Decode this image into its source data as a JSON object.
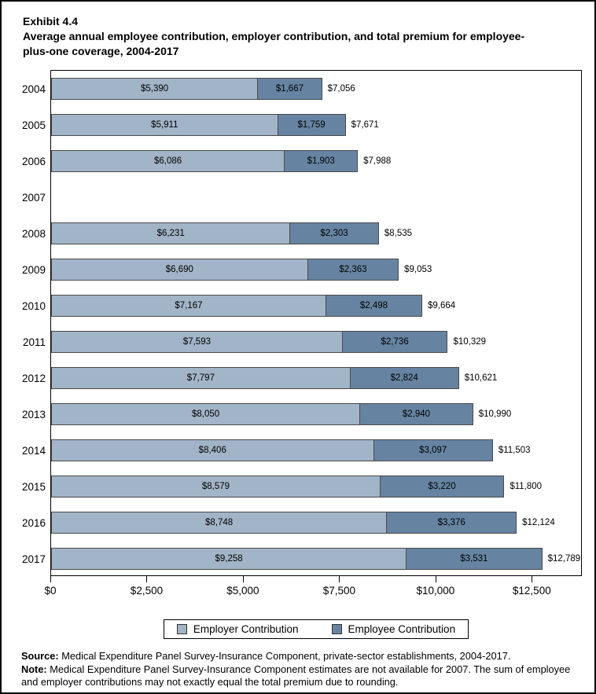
{
  "title": {
    "exhibit": "Exhibit 4.4",
    "text": "Average annual employee contribution, employer contribution, and total premium for employee-plus-one coverage, 2004-2017"
  },
  "colors": {
    "employer": "#a2b4c7",
    "employee": "#6684a2",
    "bar_border": "#4a4a4a",
    "axis": "#000000"
  },
  "chart_data": {
    "type": "bar",
    "orientation": "horizontal",
    "stacked": true,
    "title": "Average annual employee contribution, employer contribution, and total premium for employee-plus-one coverage, 2004-2017",
    "categories": [
      "2004",
      "2005",
      "2006",
      "2007",
      "2008",
      "2009",
      "2010",
      "2011",
      "2012",
      "2013",
      "2014",
      "2015",
      "2016",
      "2017"
    ],
    "series": [
      {
        "name": "Employer Contribution",
        "values": [
          5390,
          5911,
          6086,
          null,
          6231,
          6690,
          7167,
          7593,
          7797,
          8050,
          8406,
          8579,
          8748,
          9258
        ]
      },
      {
        "name": "Employee Contribution",
        "values": [
          1667,
          1759,
          1903,
          null,
          2303,
          2363,
          2498,
          2736,
          2824,
          2940,
          3097,
          3220,
          3376,
          3531
        ]
      }
    ],
    "totals": [
      7056,
      7671,
      7988,
      null,
      8535,
      9053,
      9664,
      10329,
      10621,
      10990,
      11503,
      11800,
      12124,
      12789
    ],
    "x_tick_values": [
      0,
      2500,
      5000,
      7500,
      10000,
      12500
    ],
    "x_tick_labels": [
      "$0",
      "$2,500",
      "$5,000",
      "$7,500",
      "$10,000",
      "$12,500"
    ],
    "x_max": 13800,
    "grid": "off",
    "legend": [
      "Employer Contribution",
      "Employee Contribution"
    ],
    "legend_position": "bottom",
    "missing_note": "2007 has no bar (estimates not available)"
  },
  "footer": {
    "source_label": "Source:",
    "source_text": " Medical Expenditure Panel Survey-Insurance Component, private-sector establishments, 2004-2017.",
    "note_label": "Note:",
    "note_text": " Medical Expenditure Panel Survey-Insurance Component estimates are not available for 2007. The sum of employee and employer contributions may not exactly equal the total premium due to rounding."
  }
}
